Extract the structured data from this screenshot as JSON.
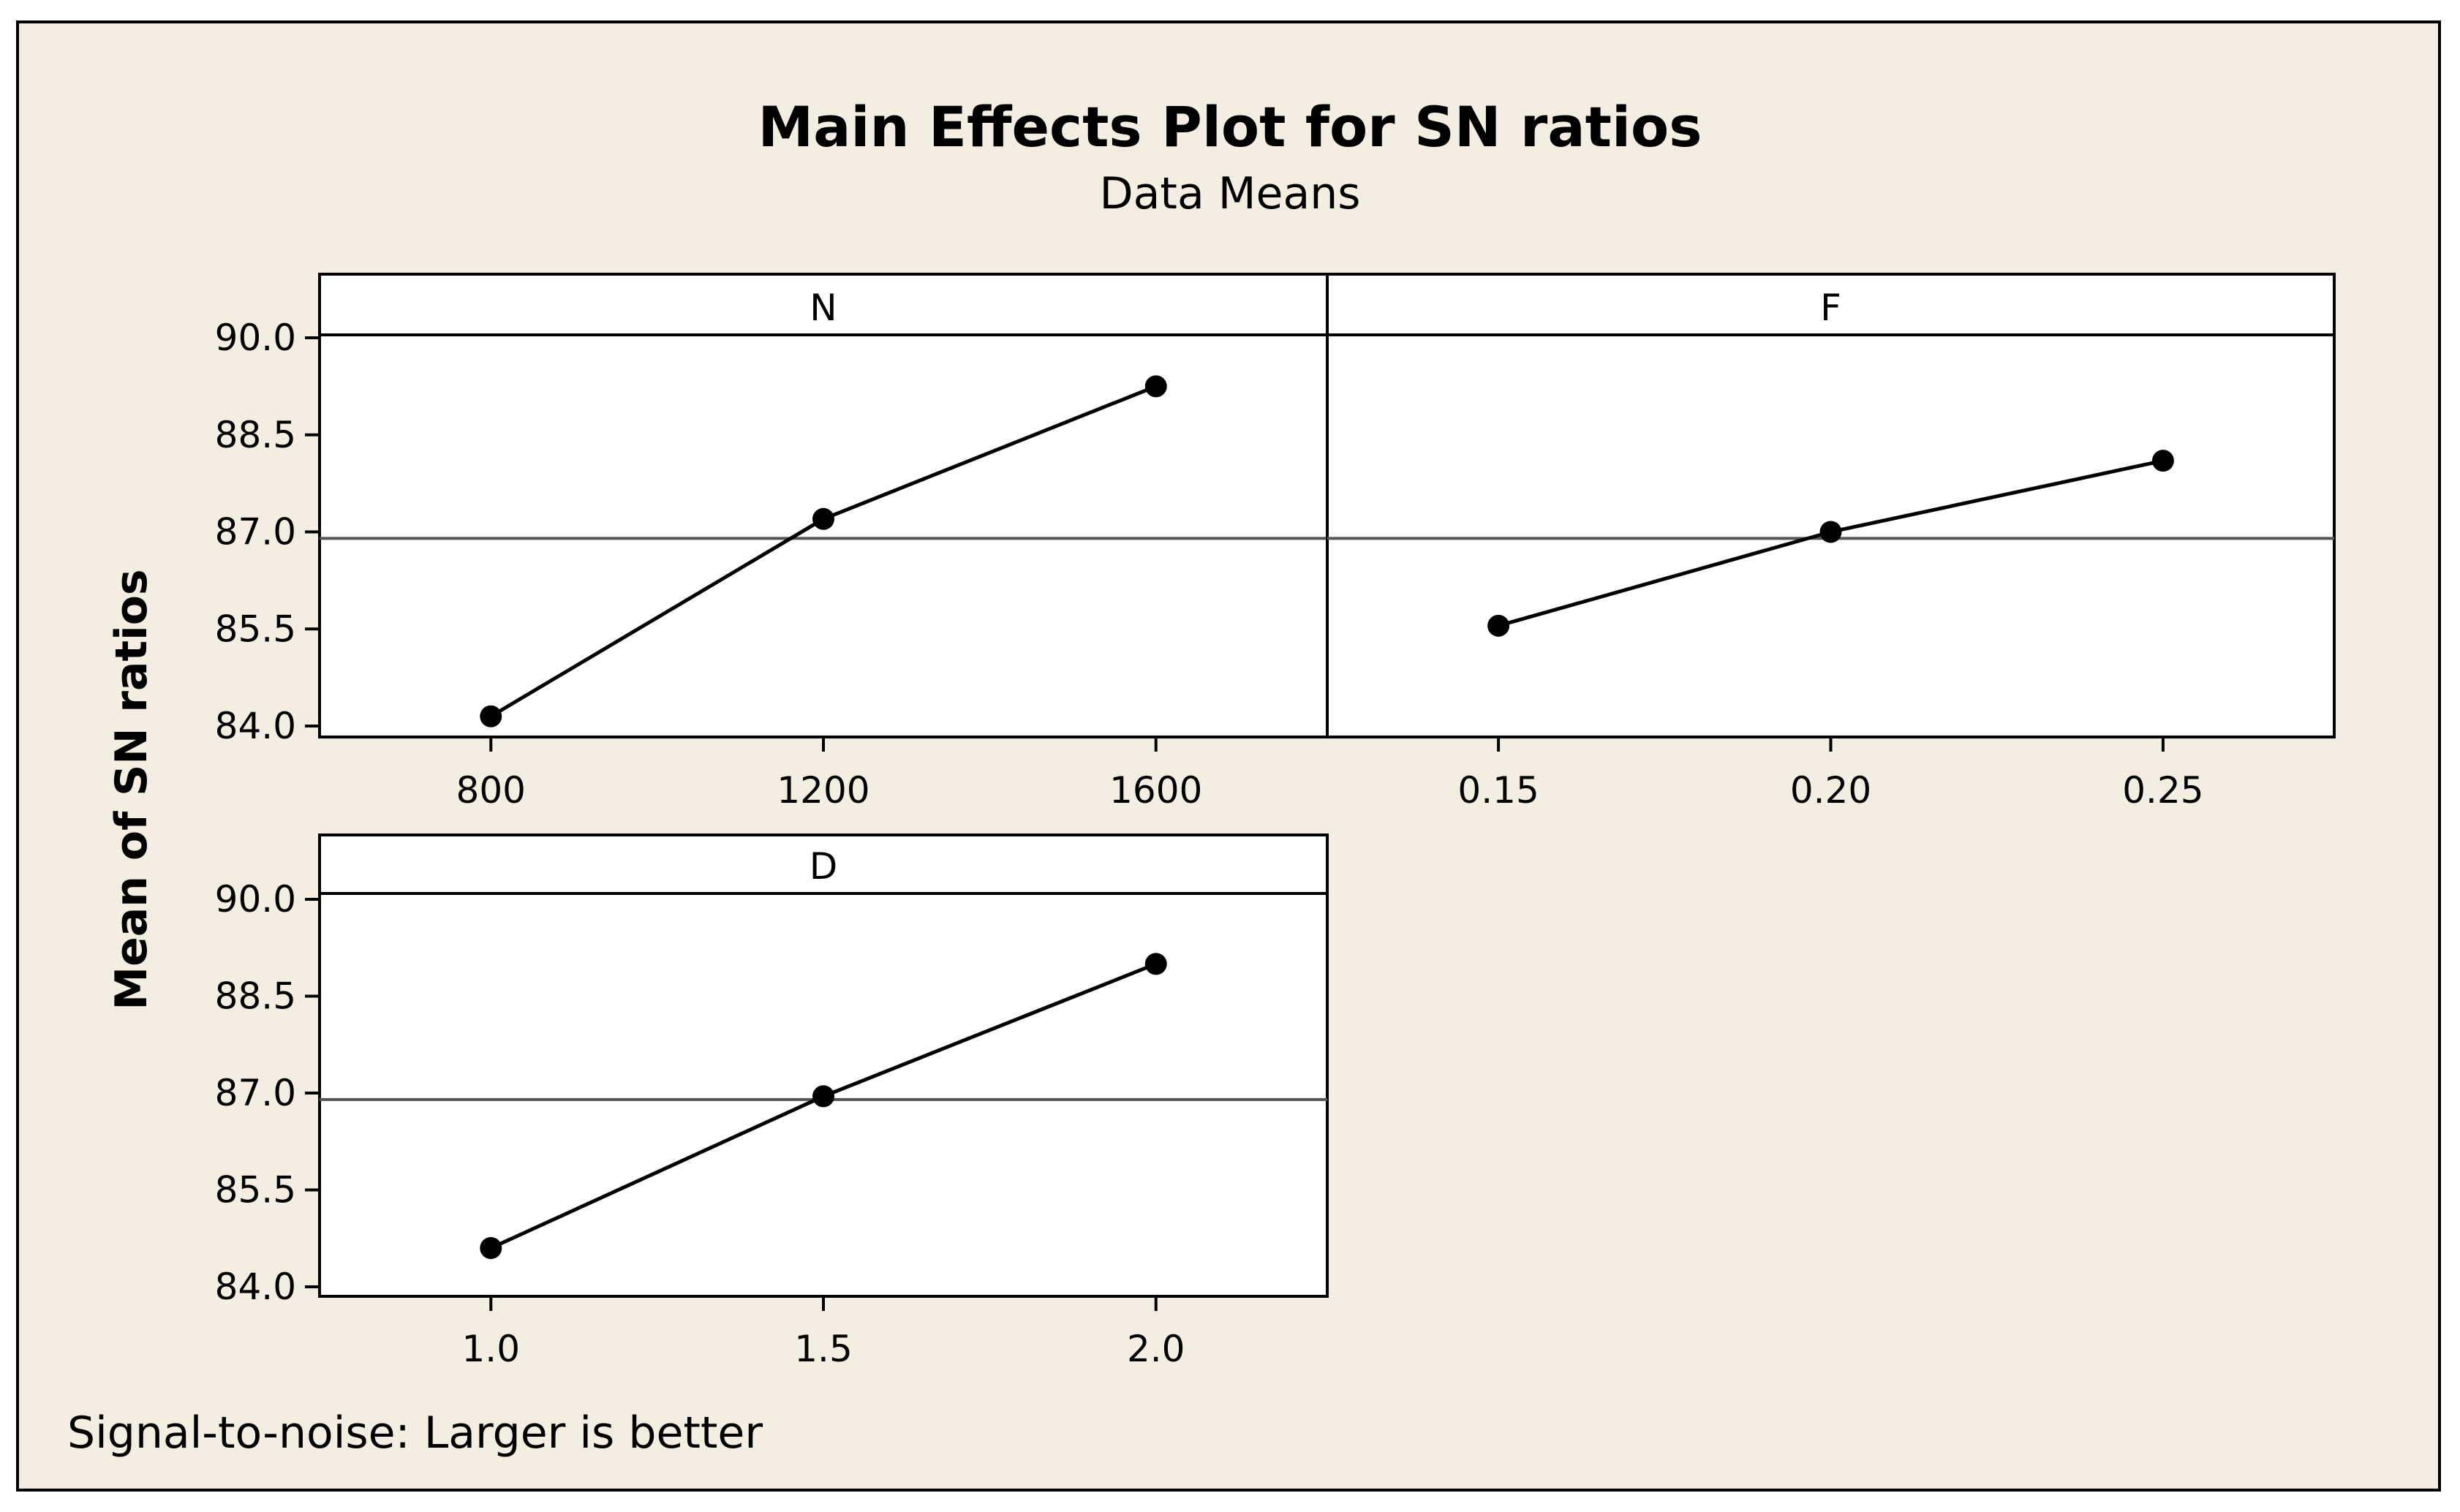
{
  "colors": {
    "background": "#f3ede2",
    "panel": "#ffffff",
    "line": "#000000",
    "reference": "#555555"
  },
  "chart_data": {
    "type": "line",
    "title": "Main Effects Plot for SN ratios",
    "subtitle": "Data Means",
    "ylabel": "Mean of SN ratios",
    "footnote": "Signal-to-noise: Larger is better",
    "ylim": [
      84.0,
      90.0
    ],
    "yticks": [
      "84.0",
      "85.5",
      "87.0",
      "88.5",
      "90.0"
    ],
    "reference_mean": 86.9,
    "panels": [
      {
        "name": "N",
        "x_ticks": [
          "800",
          "1200",
          "1600"
        ],
        "values": [
          84.15,
          87.2,
          89.25
        ]
      },
      {
        "name": "F",
        "x_ticks": [
          "0.15",
          "0.20",
          "0.25"
        ],
        "values": [
          85.55,
          87.0,
          88.1
        ]
      },
      {
        "name": "D",
        "x_ticks": [
          "1.0",
          "1.5",
          "2.0"
        ],
        "values": [
          84.6,
          86.95,
          89.0
        ]
      }
    ]
  }
}
